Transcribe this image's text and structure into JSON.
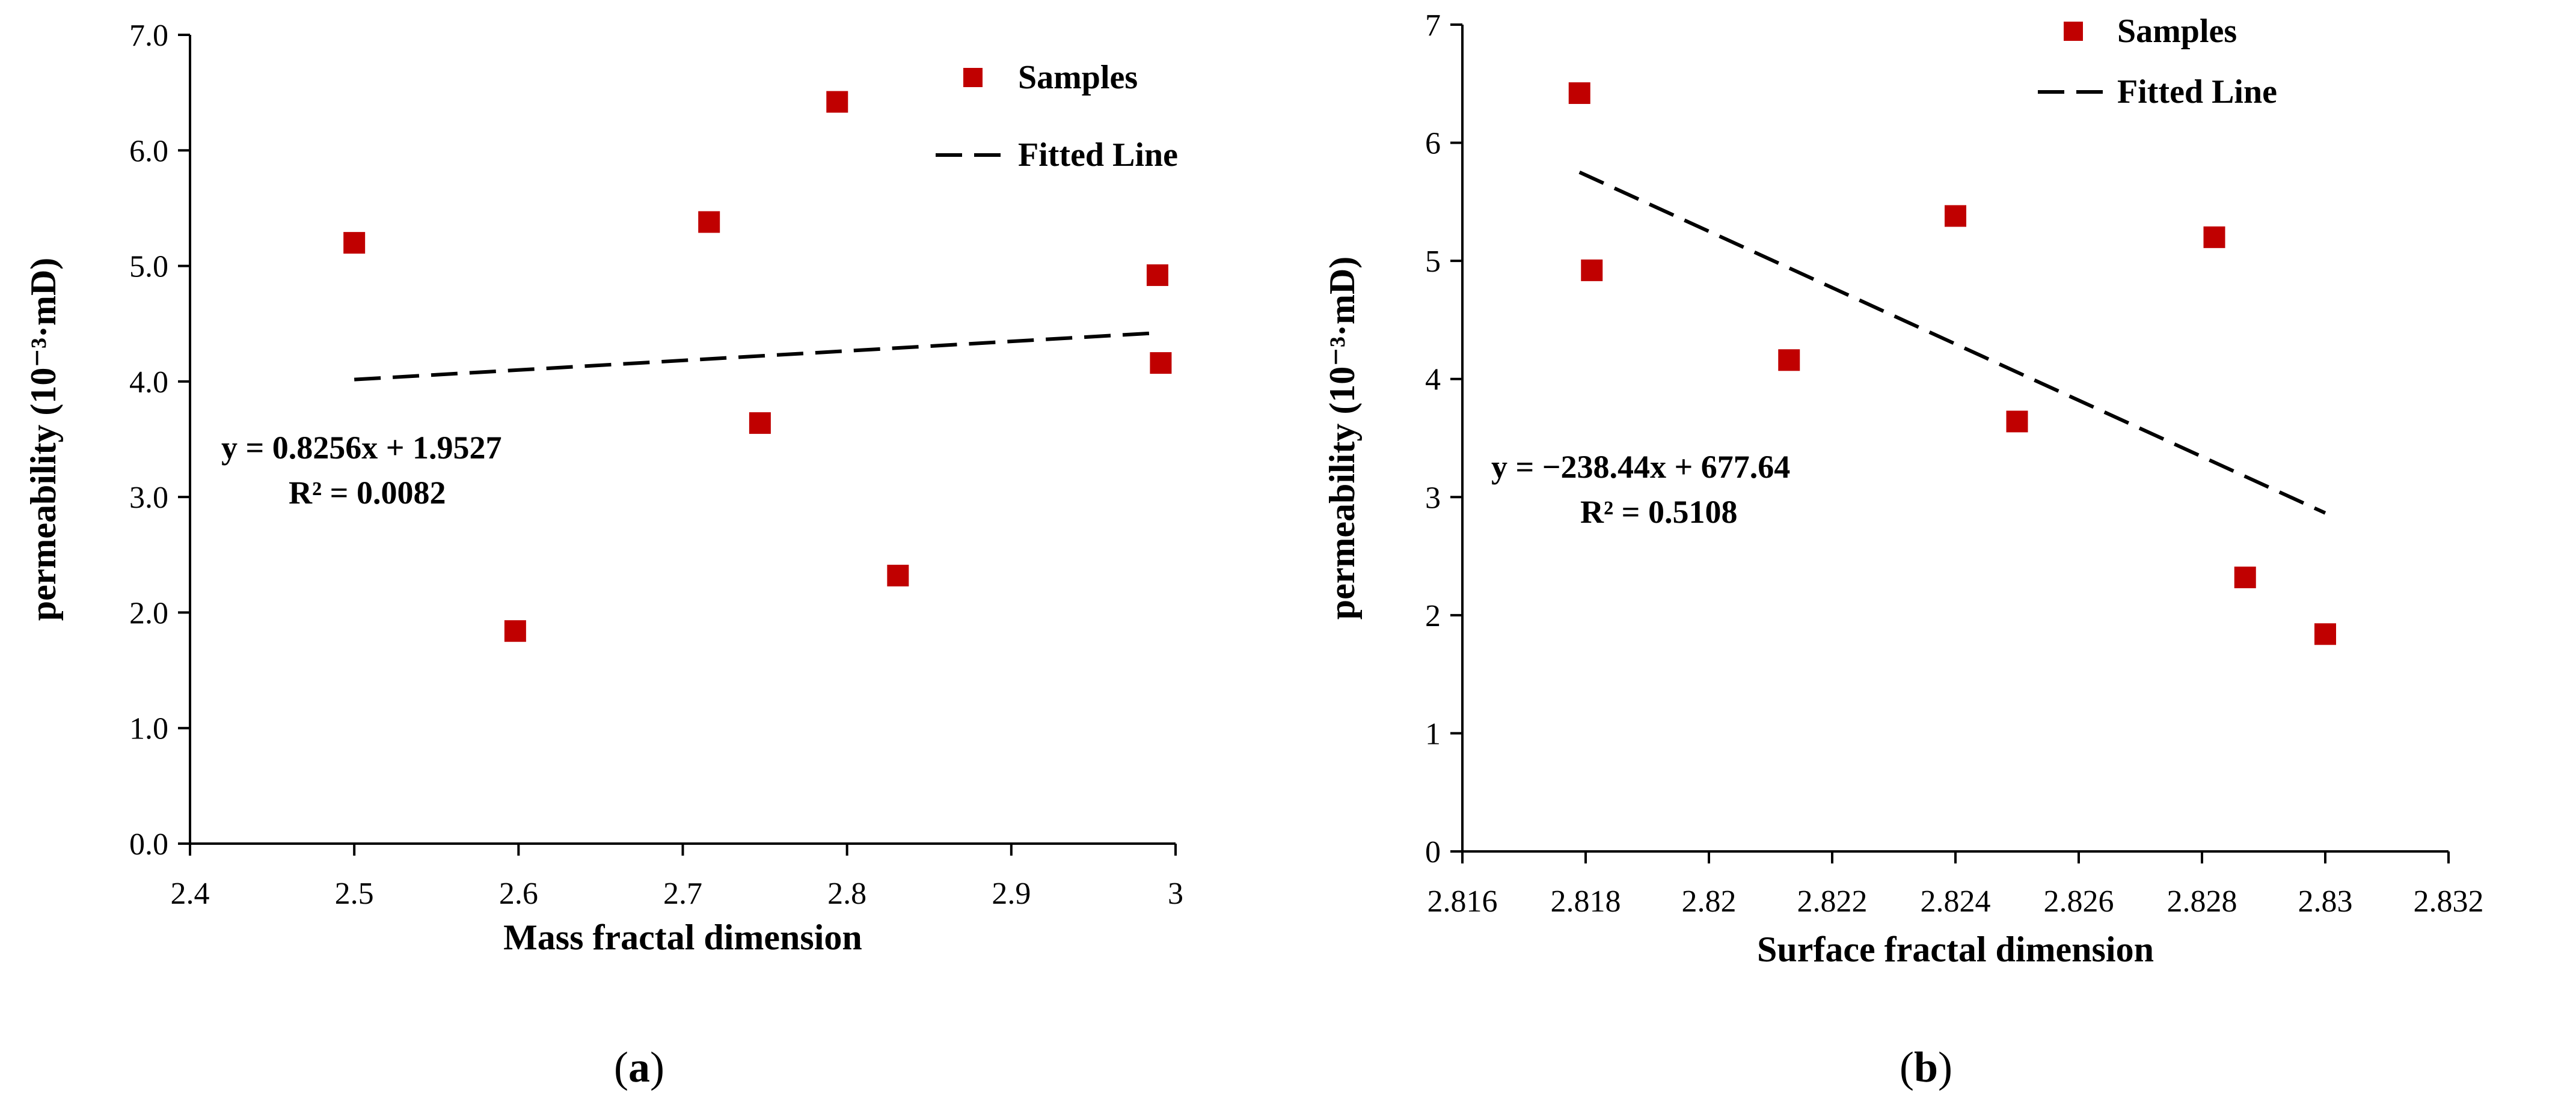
{
  "chart_data": [
    {
      "id": "a",
      "type": "scatter",
      "caption": "a",
      "xlabel": "Mass fractal dimension",
      "ylabel": "permeability (10⁻³·mD)",
      "xlim": [
        2.4,
        3.0
      ],
      "ylim": [
        0.0,
        7.0
      ],
      "x_ticks": [
        "2.4",
        "2.5",
        "2.6",
        "2.7",
        "2.8",
        "2.9",
        "3"
      ],
      "y_ticks": [
        "0.0",
        "1.0",
        "2.0",
        "3.0",
        "4.0",
        "5.0",
        "6.0",
        "7.0"
      ],
      "series": [
        {
          "name": "Samples",
          "marker": "square",
          "color": "#c00000",
          "points": [
            {
              "x": 2.5,
              "y": 5.2
            },
            {
              "x": 2.598,
              "y": 1.84
            },
            {
              "x": 2.716,
              "y": 5.38
            },
            {
              "x": 2.747,
              "y": 3.64
            },
            {
              "x": 2.794,
              "y": 6.42
            },
            {
              "x": 2.831,
              "y": 2.32
            },
            {
              "x": 2.989,
              "y": 4.92
            },
            {
              "x": 2.991,
              "y": 4.16
            }
          ]
        },
        {
          "name": "Fitted Line",
          "style": "dashed",
          "color": "#000000",
          "points": [
            {
              "x": 2.5,
              "y": 4.0167
            },
            {
              "x": 2.991,
              "y": 4.4221
            }
          ]
        }
      ],
      "equation": "y = 0.8256x + 1.9527",
      "r_squared": "R² = 0.0082"
    },
    {
      "id": "b",
      "type": "scatter",
      "caption": "b",
      "xlabel": "Surface fractal dimension",
      "ylabel": "permeability (10⁻³·mD)",
      "xlim": [
        2.816,
        2.832
      ],
      "ylim": [
        0,
        7
      ],
      "x_ticks": [
        "2.816",
        "2.818",
        "2.82",
        "2.822",
        "2.824",
        "2.826",
        "2.828",
        "2.83",
        "2.832"
      ],
      "y_ticks": [
        "0",
        "1",
        "2",
        "3",
        "4",
        "5",
        "6",
        "7"
      ],
      "series": [
        {
          "name": "Samples",
          "marker": "square",
          "color": "#c00000",
          "points": [
            {
              "x": 2.8179,
              "y": 6.42
            },
            {
              "x": 2.8181,
              "y": 4.92
            },
            {
              "x": 2.8213,
              "y": 4.16
            },
            {
              "x": 2.824,
              "y": 5.38
            },
            {
              "x": 2.825,
              "y": 3.64
            },
            {
              "x": 2.8282,
              "y": 5.2
            },
            {
              "x": 2.8287,
              "y": 2.32
            },
            {
              "x": 2.83,
              "y": 1.84
            }
          ]
        },
        {
          "name": "Fitted Line",
          "style": "dashed",
          "color": "#000000",
          "points": [
            {
              "x": 2.8179,
              "y": 5.7505
            },
            {
              "x": 2.83,
              "y": 2.8653
            }
          ]
        }
      ],
      "equation": "y = −238.44x + 677.64",
      "r_squared": "R² = 0.5108"
    }
  ]
}
